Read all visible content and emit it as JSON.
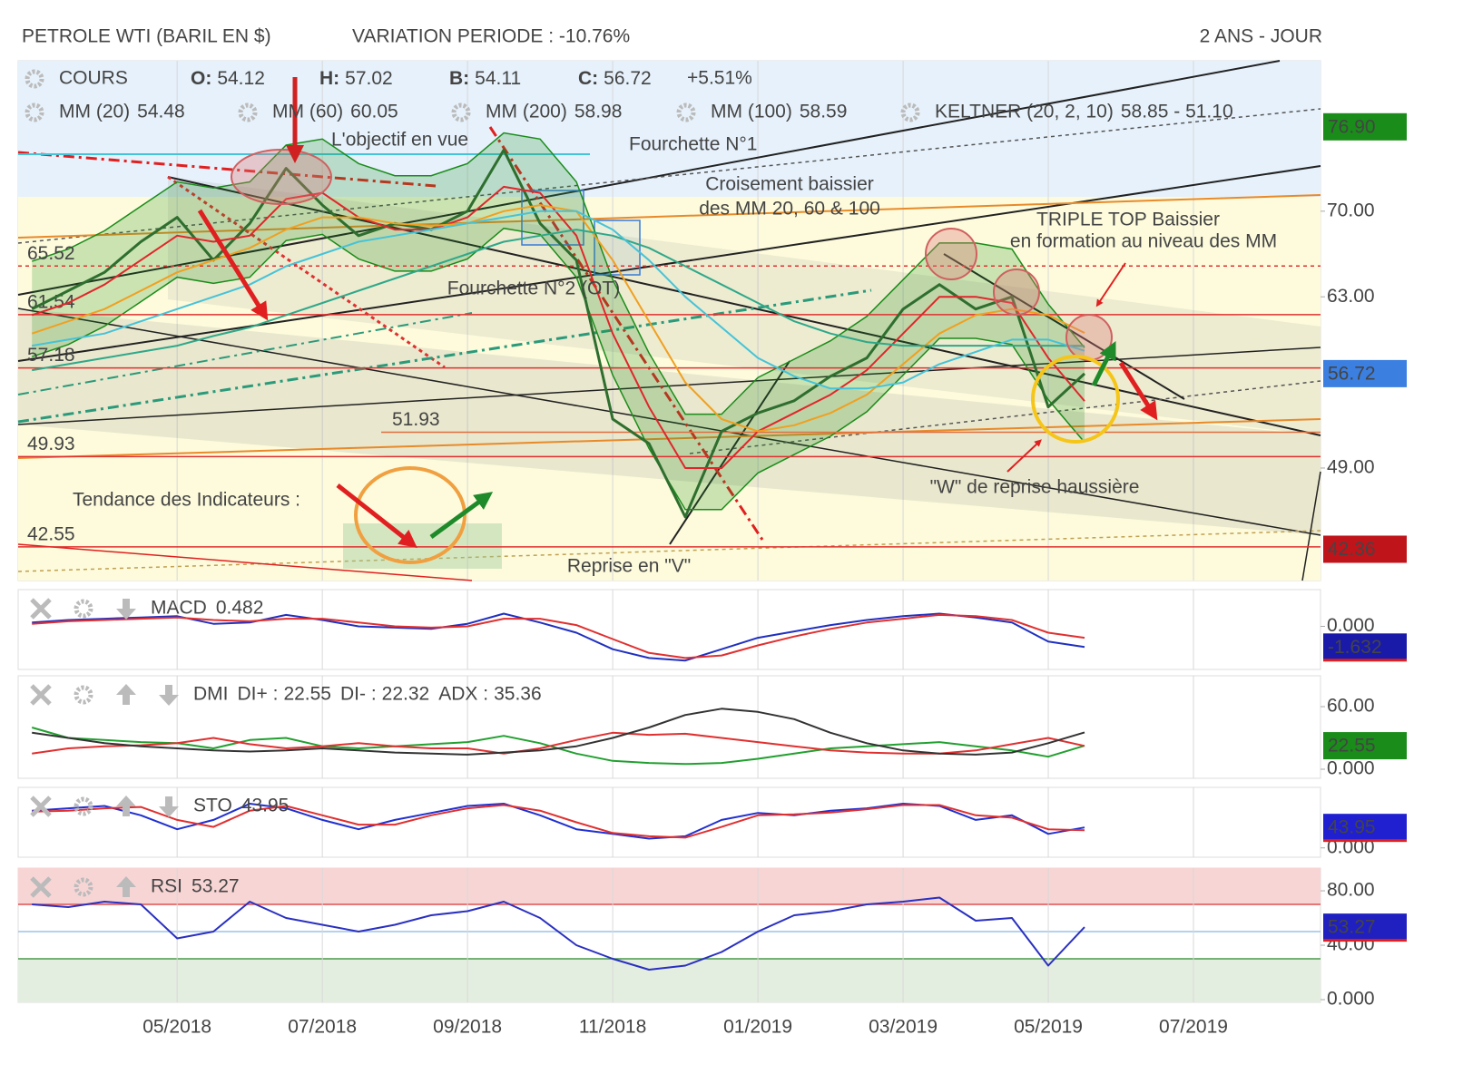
{
  "header": {
    "title": "PETROLE WTI (BARIL EN $)",
    "variation": "VARIATION PERIODE : -10.76%",
    "period": "2 ANS - JOUR"
  },
  "chart_data": [
    {
      "type": "line",
      "x": [
        2,
        2.5,
        3,
        3.5,
        4,
        4.5,
        5,
        5.5,
        6,
        6.5,
        7,
        7.5,
        8,
        8.5,
        9,
        9.5,
        10,
        10.5,
        11,
        11.5,
        12,
        12.5,
        13,
        13.5,
        14,
        14.5,
        15,
        15.5,
        16,
        16.5
      ],
      "xlim": [
        1.81,
        19.75
      ],
      "ylim": [
        39.8,
        82.3
      ],
      "yticks": [
        {
          "value": 49,
          "label": "49.00"
        },
        {
          "value": 63,
          "label": "63.00"
        },
        {
          "value": 70,
          "label": "70.00"
        }
      ],
      "price_tags": [
        {
          "value": 76.9,
          "label": "76.90",
          "color": "#1a8c1a"
        },
        {
          "value": 56.72,
          "label": "56.72",
          "color": "#3b7fe0"
        },
        {
          "value": 42.36,
          "label": "42.36",
          "color": "#c0141b"
        }
      ],
      "ohlc": [
        {
          "key": "O:",
          "value": 54.12
        },
        {
          "key": "H:",
          "value": 57.02
        },
        {
          "key": "B:",
          "value": 54.11
        },
        {
          "key": "C:",
          "value": 56.72
        }
      ],
      "change": "+5.51%",
      "series": [
        {
          "name": "COURS",
          "color": "#2e6e2e",
          "values": [
            62,
            63.5,
            65,
            67.5,
            69.5,
            66,
            69,
            73.5,
            70.5,
            68,
            69,
            68.5,
            70,
            75,
            69,
            66,
            53,
            51,
            45,
            52,
            53.5,
            54.5,
            56.5,
            58,
            62,
            64,
            62,
            63,
            54,
            56.72
          ]
        },
        {
          "name": "MM (20)",
          "color": "#e0262b",
          "values": [
            61.5,
            62.5,
            64,
            66,
            68,
            67.5,
            68,
            71,
            71.5,
            69.5,
            68.5,
            68.5,
            69.5,
            72,
            71.5,
            68,
            60,
            54,
            49,
            49,
            52,
            53.5,
            55,
            57,
            60,
            63,
            63,
            62.5,
            58,
            54.48
          ]
        },
        {
          "name": "MM (60)",
          "color": "#f0a020",
          "values": [
            60,
            61,
            62,
            63.5,
            65,
            66,
            67,
            68.5,
            69.5,
            69.5,
            69,
            68.8,
            69,
            70,
            70.5,
            70,
            66,
            61,
            56,
            53,
            52,
            52.5,
            53.5,
            55,
            57.5,
            60,
            61.5,
            62,
            61.5,
            60.05
          ]
        },
        {
          "name": "MM (200)",
          "color": "#2fa88a",
          "values": [
            57,
            57.5,
            58,
            58.5,
            59,
            59.8,
            60.5,
            61.5,
            62.5,
            63.5,
            64.5,
            65.5,
            66.5,
            67.5,
            68,
            68.5,
            68,
            67,
            65.5,
            64,
            62.5,
            61,
            60,
            59.3,
            59,
            59,
            59,
            59,
            59,
            58.98
          ]
        },
        {
          "name": "MM (100)",
          "color": "#45c3d8",
          "values": [
            59,
            59.5,
            60,
            61,
            62,
            63,
            64,
            65.5,
            66.5,
            67.5,
            68,
            68.5,
            69,
            69.5,
            70,
            70,
            68.5,
            66,
            63,
            60.5,
            58,
            56.5,
            55.5,
            55.5,
            56,
            57.5,
            58.5,
            59.5,
            59.5,
            58.59
          ]
        }
      ],
      "keltner": {
        "name": "KELTNER (20, 2, 10)",
        "legend_label": "58.85 - 51.10",
        "color": "#1a8c1a",
        "upper": [
          65.9,
          66.9,
          68.4,
          70.4,
          72.4,
          71.9,
          72.4,
          75.4,
          75.9,
          73.9,
          72.9,
          72.9,
          73.9,
          76.4,
          75.9,
          72.4,
          64.4,
          58.4,
          53.4,
          53.4,
          56.4,
          57.9,
          59.4,
          61.4,
          64.4,
          67.4,
          67.4,
          66.9,
          62.4,
          58.85
        ],
        "lower": [
          58.1,
          59.1,
          60.6,
          62.6,
          64.6,
          64.1,
          64.6,
          67.6,
          68.1,
          66.1,
          65.1,
          65.1,
          66.1,
          68.6,
          68.1,
          64.6,
          56.6,
          50.6,
          45.6,
          45.6,
          48.6,
          50.1,
          51.6,
          53.6,
          56.6,
          59.6,
          59.6,
          59.1,
          54.6,
          51.1
        ]
      },
      "levels": [
        65.52,
        61.54,
        57.18,
        51.93,
        49.93,
        42.55
      ],
      "annotations": [
        "L'objectif en vue",
        "Fourchette N°1",
        "Croisement baissier",
        "des MM 20, 60 & 100",
        "TRIPLE TOP Baissier",
        "en formation au niveau des MM",
        "Fourchette N°2 (OT)",
        "Tendance des Indicateurs :",
        "Reprise en \"V\"",
        "\"W\" de reprise haussière"
      ]
    },
    {
      "type": "line",
      "title": "MACD",
      "legend_value": 0.482,
      "ylim": [
        -3.4,
        2.9
      ],
      "yticks": [
        {
          "value": 0,
          "label": "0.000"
        }
      ],
      "series": [
        {
          "color": "#2030c0",
          "values": [
            0.3,
            0.5,
            0.6,
            0.7,
            0.8,
            0.2,
            0.3,
            0.9,
            0.5,
            0,
            -0.1,
            -0.2,
            0.2,
            1.0,
            0.3,
            -0.5,
            -1.8,
            -2.5,
            -2.7,
            -1.8,
            -0.9,
            -0.4,
            0.1,
            0.5,
            0.8,
            1.0,
            0.7,
            0.3,
            -1.2,
            -1.632
          ]
        },
        {
          "color": "#e03030",
          "values": [
            0.2,
            0.4,
            0.5,
            0.6,
            0.7,
            0.5,
            0.4,
            0.6,
            0.6,
            0.3,
            0,
            -0.1,
            0,
            0.6,
            0.6,
            0.1,
            -1,
            -2.1,
            -2.5,
            -2.3,
            -1.5,
            -0.8,
            -0.2,
            0.3,
            0.6,
            0.9,
            0.8,
            0.5,
            -0.5,
            -0.9
          ]
        }
      ]
    },
    {
      "type": "line",
      "title": "DMI",
      "ylim": [
        -8.7,
        89.6
      ],
      "yticks": [
        {
          "value": 0,
          "label": "0.000"
        },
        {
          "value": 60,
          "label": "60.00"
        }
      ],
      "series": [
        {
          "name": "DI+ :",
          "color": "#22a030",
          "values": [
            40,
            30,
            28,
            26,
            25,
            20,
            28,
            30,
            22,
            20,
            22,
            24,
            26,
            32,
            25,
            15,
            8,
            6,
            5,
            6,
            10,
            15,
            20,
            22,
            24,
            26,
            22,
            18,
            12,
            22.55
          ]
        },
        {
          "name": "DI- :",
          "color": "#e03030",
          "values": [
            15,
            20,
            22,
            23,
            25,
            30,
            24,
            20,
            22,
            25,
            22,
            20,
            20,
            15,
            20,
            28,
            35,
            33,
            34,
            30,
            26,
            22,
            18,
            16,
            15,
            15,
            18,
            24,
            30,
            22.32
          ]
        },
        {
          "name": "ADX :",
          "color": "#333333",
          "values": [
            35,
            30,
            25,
            22,
            20,
            18,
            17,
            18,
            20,
            18,
            16,
            15,
            14,
            16,
            18,
            22,
            30,
            40,
            52,
            58,
            55,
            48,
            35,
            25,
            18,
            15,
            14,
            16,
            25,
            35.36
          ]
        }
      ]
    },
    {
      "type": "line",
      "title": "STO",
      "ylim": [
        -20,
        130
      ],
      "yticks": [
        {
          "value": 0,
          "label": "0.000"
        }
      ],
      "series": [
        {
          "color": "#2030d0",
          "values": [
            80,
            85,
            90,
            70,
            40,
            60,
            95,
            85,
            60,
            40,
            60,
            75,
            90,
            95,
            70,
            40,
            30,
            20,
            25,
            60,
            75,
            70,
            80,
            85,
            95,
            90,
            60,
            70,
            30,
            43.95
          ]
        },
        {
          "color": "#e03030",
          "values": [
            78,
            80,
            85,
            88,
            60,
            45,
            80,
            90,
            70,
            50,
            50,
            70,
            85,
            92,
            80,
            55,
            32,
            25,
            22,
            45,
            70,
            72,
            76,
            83,
            92,
            92,
            70,
            65,
            40,
            38
          ]
        }
      ]
    },
    {
      "type": "line",
      "title": "RSI",
      "ylim": [
        -2,
        96.7
      ],
      "yticks": [
        {
          "value": 0,
          "label": "0.000"
        },
        {
          "value": 40,
          "label": "40.00"
        },
        {
          "value": 80,
          "label": "80.00"
        }
      ],
      "overbought": 70,
      "midline": 50,
      "oversold": 30,
      "xticks": [
        {
          "value": 4,
          "label": "05/2018"
        },
        {
          "value": 6,
          "label": "07/2018"
        },
        {
          "value": 8,
          "label": "09/2018"
        },
        {
          "value": 10,
          "label": "11/2018"
        },
        {
          "value": 12,
          "label": "01/2019"
        },
        {
          "value": 14,
          "label": "03/2019"
        },
        {
          "value": 16,
          "label": "05/2019"
        },
        {
          "value": 18,
          "label": "07/2019"
        }
      ],
      "series": [
        {
          "color": "#2a30c0",
          "values": [
            70,
            68,
            72,
            70,
            45,
            50,
            72,
            60,
            55,
            50,
            55,
            62,
            65,
            72,
            60,
            40,
            30,
            22,
            25,
            35,
            50,
            62,
            65,
            70,
            72,
            75,
            58,
            60,
            25,
            53.27
          ]
        }
      ]
    }
  ]
}
